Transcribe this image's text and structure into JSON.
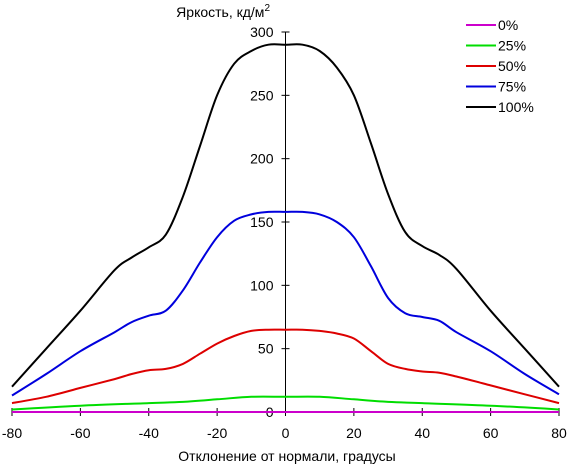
{
  "chart_data": {
    "type": "line",
    "ylabel": "Яркость, кд/м",
    "ylabel_sup": "2",
    "xlabel": "Отклонение от нормали, градусы",
    "xlim": [
      -80,
      80
    ],
    "ylim": [
      0,
      300
    ],
    "x_ticks": [
      "-80",
      "-60",
      "-40",
      "-20",
      "0",
      "20",
      "40",
      "60",
      "80"
    ],
    "y_ticks": [
      "0",
      "50",
      "100",
      "150",
      "200",
      "250",
      "300"
    ],
    "grid": false,
    "legend_position": "top-right",
    "series": [
      {
        "name": "0%",
        "color": "#cc00cc",
        "x": [
          -80,
          0,
          80
        ],
        "y": [
          0,
          0,
          0
        ]
      },
      {
        "name": "25%",
        "color": "#00dd00",
        "x": [
          -80,
          -60,
          -40,
          -30,
          -20,
          -10,
          0,
          10,
          20,
          30,
          40,
          60,
          80
        ],
        "y": [
          2,
          5,
          7,
          8,
          10,
          12,
          12,
          12,
          10,
          8,
          7,
          5,
          2
        ]
      },
      {
        "name": "50%",
        "color": "#dd0000",
        "x": [
          -80,
          -70,
          -60,
          -50,
          -45,
          -40,
          -35,
          -30,
          -25,
          -20,
          -15,
          -10,
          -5,
          0,
          5,
          10,
          15,
          20,
          25,
          30,
          35,
          40,
          45,
          50,
          60,
          70,
          80
        ],
        "y": [
          7,
          12,
          19,
          26,
          30,
          33,
          34,
          38,
          46,
          54,
          60,
          64,
          65,
          65,
          65,
          64,
          62,
          58,
          48,
          38,
          34,
          32,
          31,
          28,
          21,
          14,
          7
        ]
      },
      {
        "name": "75%",
        "color": "#0000dd",
        "x": [
          -80,
          -70,
          -60,
          -50,
          -45,
          -40,
          -35,
          -30,
          -25,
          -20,
          -15,
          -10,
          -5,
          0,
          5,
          10,
          15,
          20,
          25,
          30,
          35,
          40,
          45,
          50,
          60,
          70,
          80
        ],
        "y": [
          13,
          30,
          48,
          63,
          71,
          76,
          80,
          96,
          118,
          138,
          151,
          156,
          158,
          158,
          158,
          156,
          150,
          138,
          115,
          90,
          78,
          75,
          72,
          63,
          48,
          30,
          14
        ]
      },
      {
        "name": "100%",
        "color": "#000000",
        "x": [
          -80,
          -70,
          -60,
          -50,
          -45,
          -40,
          -35,
          -30,
          -25,
          -20,
          -15,
          -10,
          -5,
          0,
          5,
          10,
          15,
          20,
          25,
          30,
          35,
          40,
          45,
          50,
          60,
          70,
          80
        ],
        "y": [
          20,
          50,
          80,
          112,
          122,
          130,
          140,
          170,
          210,
          250,
          275,
          285,
          290,
          290,
          290,
          285,
          272,
          250,
          212,
          172,
          142,
          131,
          124,
          113,
          80,
          50,
          20
        ]
      }
    ]
  }
}
